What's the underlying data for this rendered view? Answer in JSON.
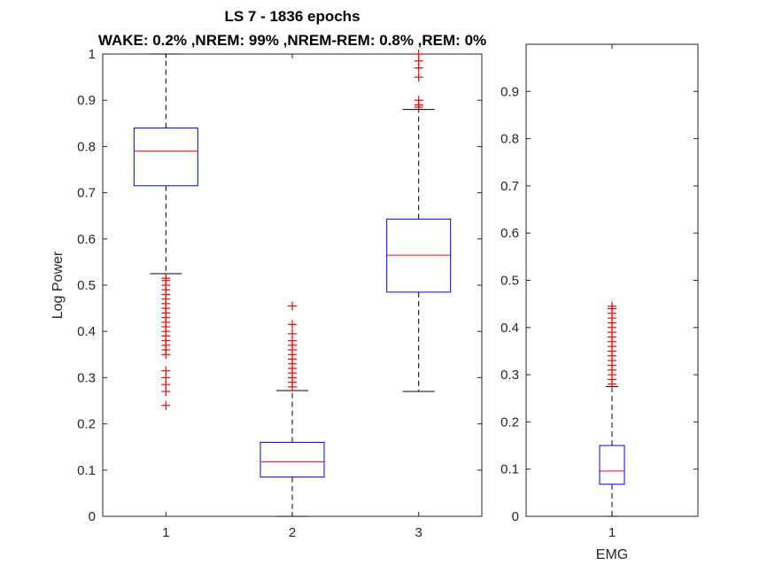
{
  "figure": {
    "title_line1": "LS 7 - 1836 epochs",
    "title_line2": "WAKE: 0.2% ,NREM: 99% ,NREM-REM: 0.8% ,REM: 0%"
  },
  "colors": {
    "box": "#0000ff",
    "median": "#ff0000",
    "outlier": "#ff0000",
    "whisker": "#000000",
    "axis": "#262626"
  },
  "chart_data": [
    {
      "type": "box",
      "title": "",
      "xlabel": "",
      "ylabel": "Log Power",
      "categories": [
        "1",
        "2",
        "3"
      ],
      "ylim": [
        0,
        1
      ],
      "yticks": [
        "0",
        "0.1",
        "0.2",
        "0.3",
        "0.4",
        "0.5",
        "0.6",
        "0.7",
        "0.8",
        "0.9",
        "1"
      ],
      "grid": false,
      "series": [
        {
          "category": "1",
          "min": 0.525,
          "q1": 0.715,
          "median": 0.79,
          "q3": 0.84,
          "max": 1.0,
          "outliers": [
            0.24,
            0.27,
            0.285,
            0.3,
            0.315,
            0.35,
            0.36,
            0.37,
            0.38,
            0.39,
            0.4,
            0.41,
            0.42,
            0.43,
            0.44,
            0.45,
            0.46,
            0.47,
            0.48,
            0.49,
            0.5,
            0.51,
            0.515
          ]
        },
        {
          "category": "2",
          "min": 0.0,
          "q1": 0.085,
          "median": 0.118,
          "q3": 0.16,
          "max": 0.272,
          "outliers": [
            0.28,
            0.29,
            0.3,
            0.31,
            0.32,
            0.33,
            0.34,
            0.35,
            0.36,
            0.37,
            0.38,
            0.395,
            0.415,
            0.455
          ]
        },
        {
          "category": "3",
          "min": 0.27,
          "q1": 0.485,
          "median": 0.565,
          "q3": 0.643,
          "max": 0.88,
          "outliers": [
            0.885,
            0.89,
            0.9,
            0.95,
            0.97,
            0.985,
            1.0
          ]
        }
      ]
    },
    {
      "type": "box",
      "title": "",
      "xlabel": "EMG",
      "ylabel": "",
      "categories": [
        "1"
      ],
      "ylim": [
        0,
        1
      ],
      "yticks": [
        "0",
        "0.1",
        "0.2",
        "0.3",
        "0.4",
        "0.5",
        "0.6",
        "0.7",
        "0.8",
        "0.9"
      ],
      "grid": false,
      "series": [
        {
          "category": "1",
          "min": 0.0,
          "q1": 0.068,
          "median": 0.096,
          "q3": 0.15,
          "max": 0.275,
          "outliers": [
            0.28,
            0.29,
            0.3,
            0.31,
            0.32,
            0.33,
            0.34,
            0.35,
            0.36,
            0.37,
            0.38,
            0.39,
            0.4,
            0.41,
            0.42,
            0.43,
            0.44,
            0.445
          ]
        }
      ]
    }
  ]
}
